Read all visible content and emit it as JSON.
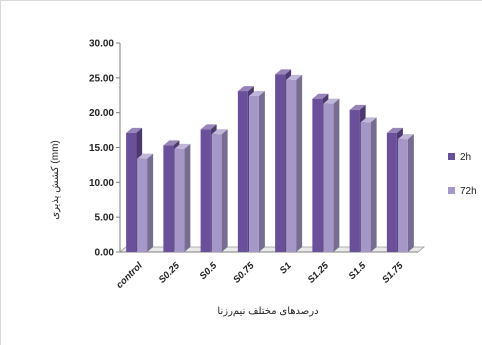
{
  "chart_data": {
    "type": "bar",
    "style": "3d-clustered",
    "categories": [
      "control",
      "S0.25",
      "S0.5",
      "S0.75",
      "S1",
      "S1.25",
      "S1.5",
      "S1.75"
    ],
    "series": [
      {
        "name": "2h",
        "color": "#6a4f9a",
        "values": [
          17.1,
          15.3,
          17.6,
          23.1,
          25.5,
          22.0,
          20.4,
          17.1
        ]
      },
      {
        "name": "72h",
        "color": "#a597c8",
        "values": [
          13.4,
          14.8,
          16.9,
          22.4,
          24.7,
          21.3,
          18.6,
          16.2
        ]
      }
    ],
    "yticks": [
      "0.00",
      "5.00",
      "10.00",
      "15.00",
      "20.00",
      "25.00",
      "30.00"
    ],
    "ylim": [
      0,
      30
    ],
    "ylabel": "کشش پذیری (mm)",
    "xlabel": "درصدهای مختلف نیم‌رزنا",
    "legend": "right",
    "grid": false
  }
}
